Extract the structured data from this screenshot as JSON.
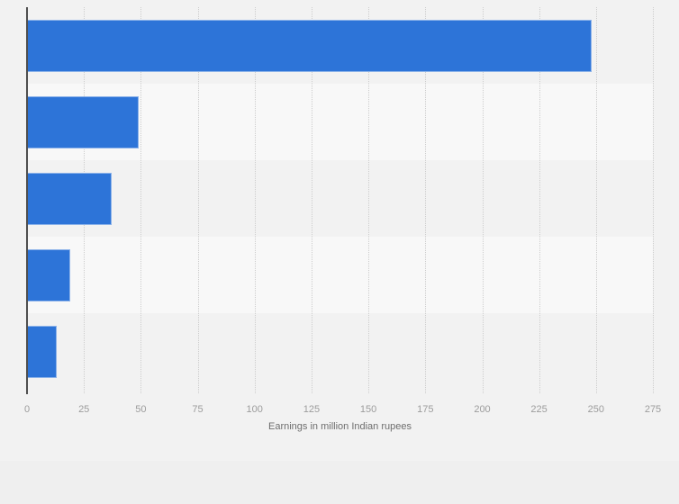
{
  "chart_data": {
    "type": "bar",
    "orientation": "horizontal",
    "xlabel": "Earnings in million Indian rupees",
    "values": [
      248,
      49,
      37,
      19,
      13
    ],
    "xlim": [
      0,
      275
    ],
    "xticks": [
      0,
      25,
      50,
      75,
      100,
      125,
      150,
      175,
      200,
      225,
      250,
      275
    ],
    "grid": "vertical-dotted",
    "legend": "none",
    "category_labels_visible": false,
    "colors": {
      "bar": "#2d74d8",
      "row_stripe_dark": "#f2f2f2",
      "row_stripe_light": "#f8f8f8",
      "axis_line": "#4f4f4f",
      "gridline": "#cdcdcd",
      "tick_label": "#9c9c9c",
      "axis_title": "#6e6e6e",
      "background": "#f2f2f2",
      "footer_band": "#efefef"
    }
  }
}
